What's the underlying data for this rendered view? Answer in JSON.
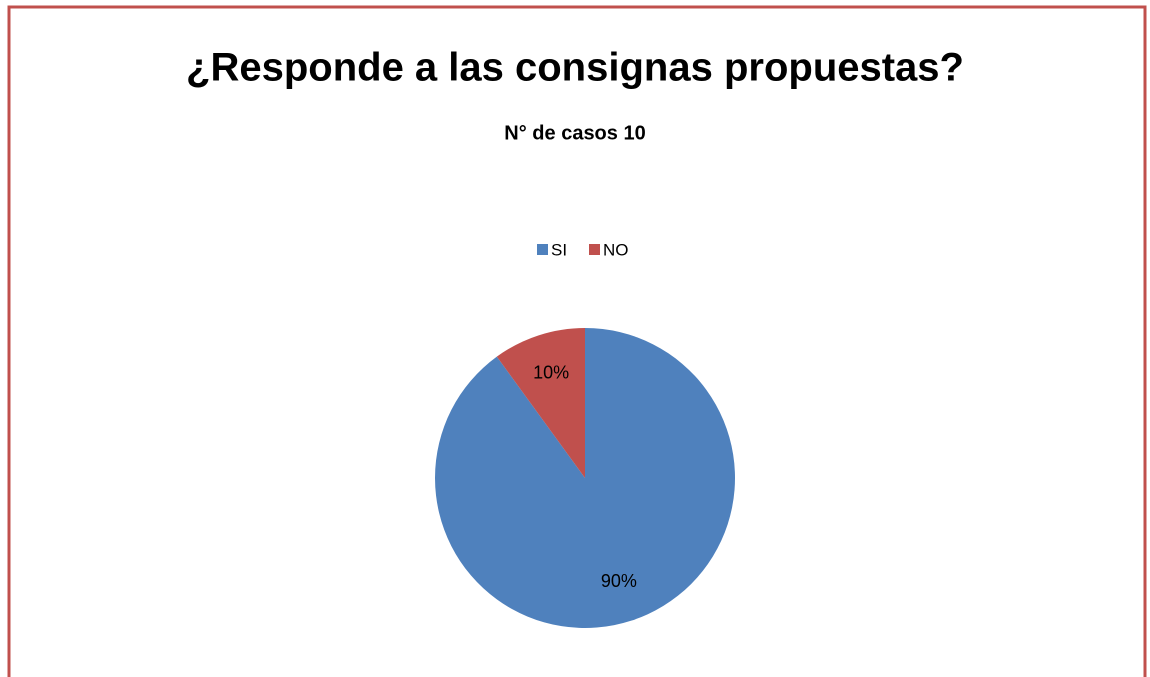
{
  "chart_data": {
    "type": "pie",
    "title": "¿Responde a las consignas propuestas?",
    "subtitle": "N° de casos 10",
    "categories": [
      "SI",
      "NO"
    ],
    "values": [
      90,
      10
    ],
    "value_labels": [
      "90%",
      "10%"
    ],
    "colors": [
      "#4f81bd",
      "#c0504d"
    ],
    "legend": "top"
  }
}
